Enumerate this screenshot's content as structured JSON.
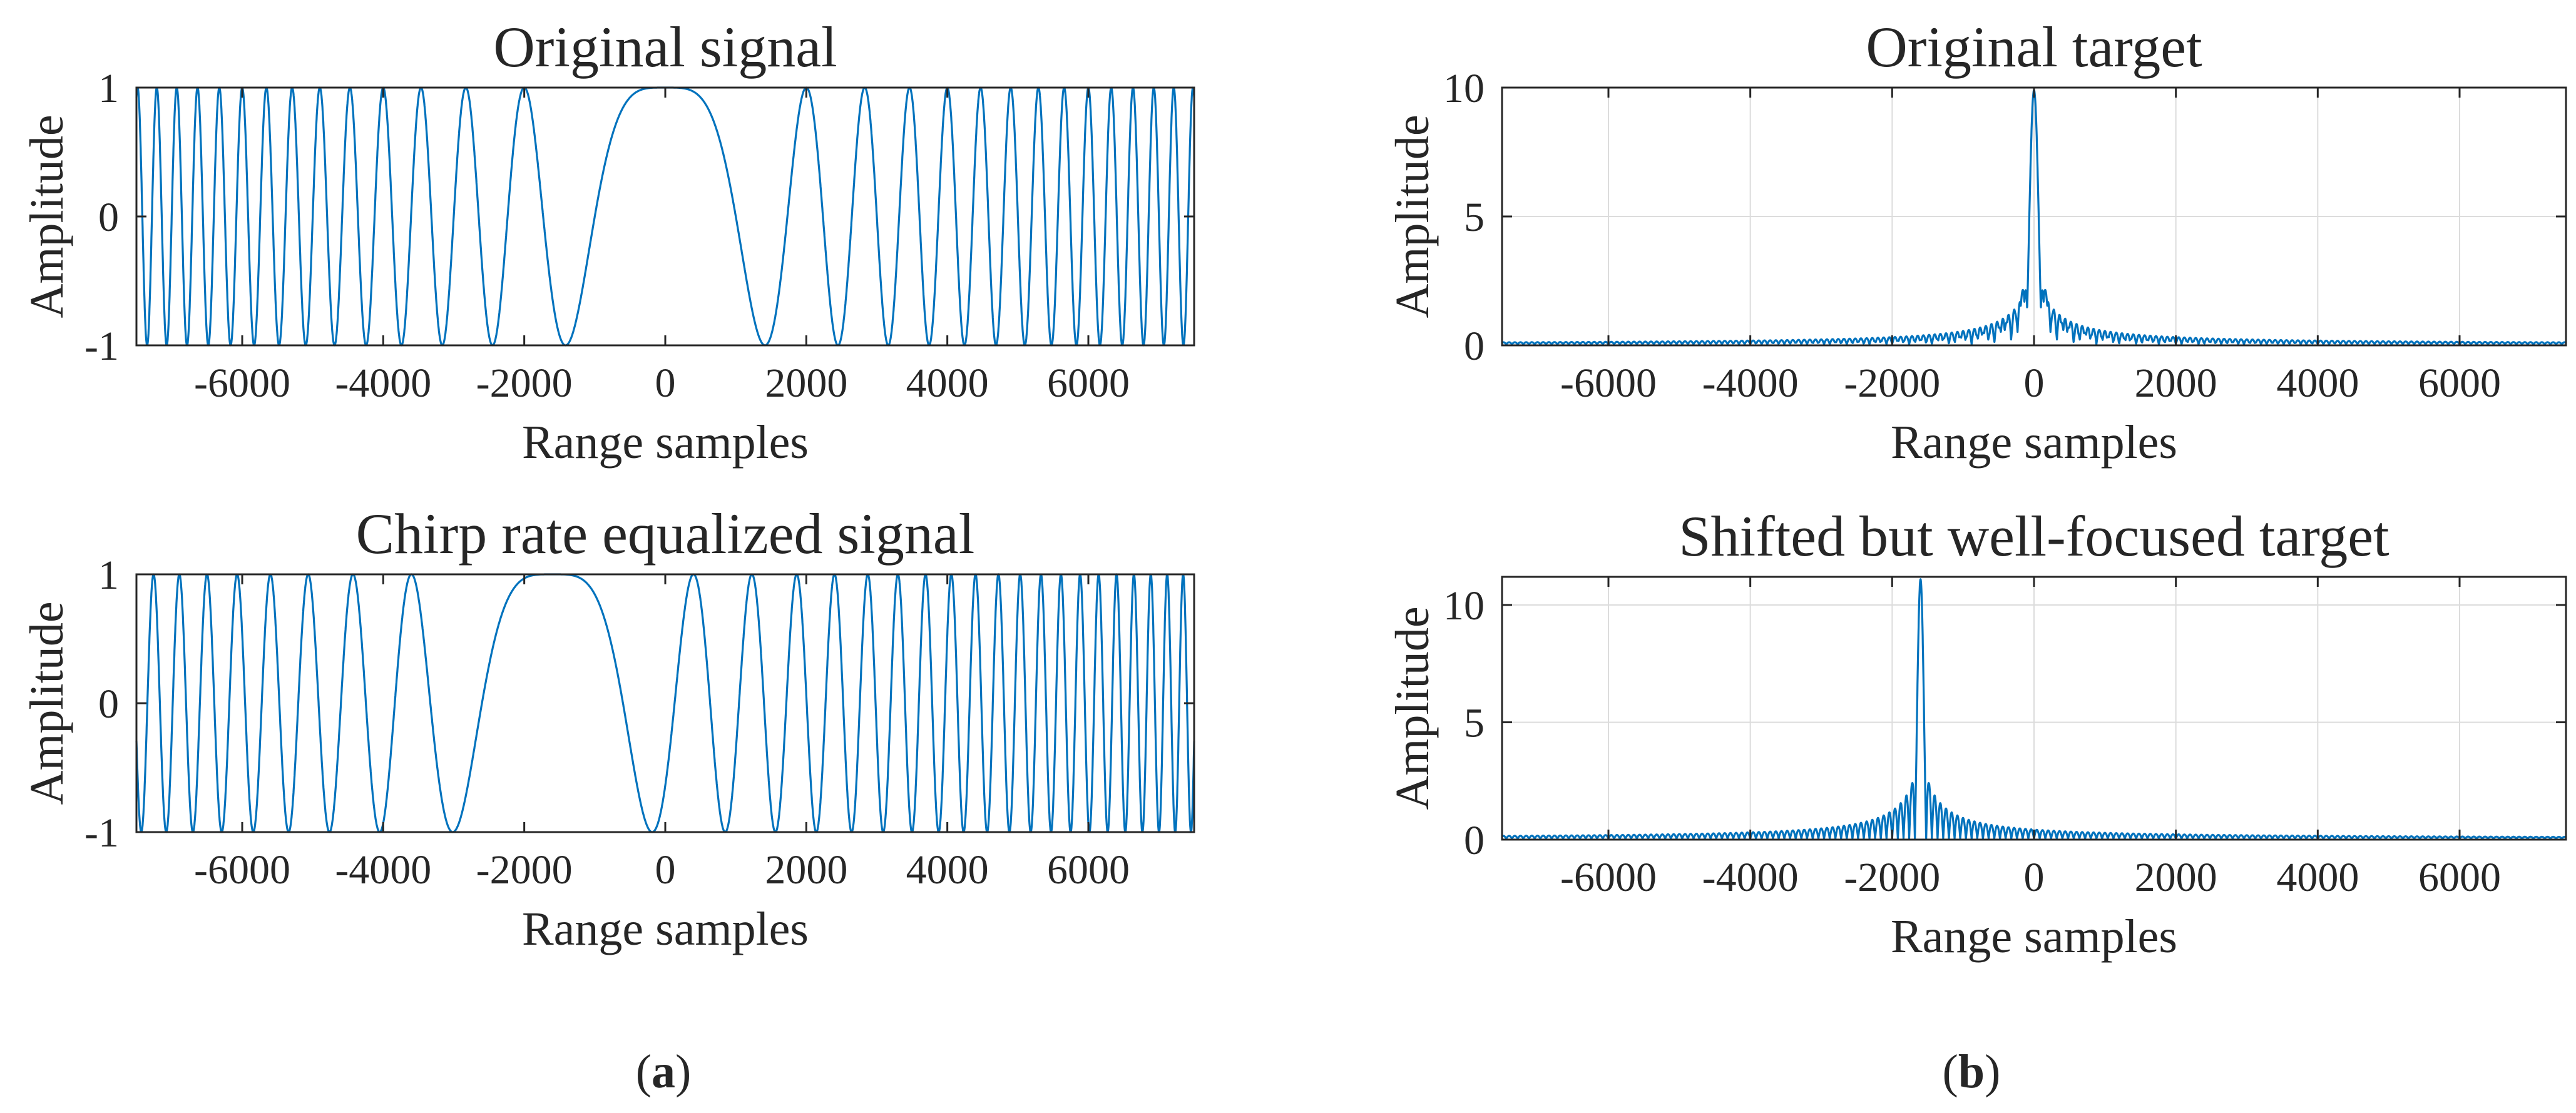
{
  "colors": {
    "line": "#0072BD",
    "grid": "#dcdcdc",
    "axis": "#262626"
  },
  "panel_labels": {
    "a": "a",
    "b": "b"
  },
  "chart_data": [
    {
      "id": "a1",
      "type": "line",
      "title": "Original signal",
      "xlabel": "Range samples",
      "ylabel": "Amplitude",
      "xlim": [
        -7500,
        7500
      ],
      "ylim": [
        -1,
        1
      ],
      "xticks": [
        -6000,
        -4000,
        -2000,
        0,
        2000,
        4000,
        6000
      ],
      "xtick_labels": [
        "-6000",
        "-4000",
        "-2000",
        "0",
        "2000",
        "4000",
        "6000"
      ],
      "yticks": [
        -1,
        0,
        1
      ],
      "ytick_labels": [
        "-1",
        "0",
        "1"
      ],
      "grid": false,
      "series": [
        {
          "name": "Original signal",
          "kind": "chirp",
          "center": 0,
          "first_zero_crossing": 1000,
          "amplitude": 1
        }
      ]
    },
    {
      "id": "a2",
      "type": "line",
      "title": "Chirp rate equalized signal",
      "xlabel": "Range samples",
      "ylabel": "Amplitude",
      "xlim": [
        -7500,
        7500
      ],
      "ylim": [
        -1,
        1
      ],
      "xticks": [
        -6000,
        -4000,
        -2000,
        0,
        2000,
        4000,
        6000
      ],
      "xtick_labels": [
        "-6000",
        "-4000",
        "-2000",
        "0",
        "2000",
        "4000",
        "6000"
      ],
      "yticks": [
        -1,
        0,
        1
      ],
      "ytick_labels": [
        "-1",
        "0",
        "1"
      ],
      "grid": false,
      "series": [
        {
          "name": "Chirp rate equalized signal",
          "kind": "chirp",
          "center": -1600,
          "first_zero_crossing": 1000,
          "amplitude": 1
        }
      ]
    },
    {
      "id": "b1",
      "type": "line",
      "title": "Original target",
      "xlabel": "Range samples",
      "ylabel": "Amplitude",
      "xlim": [
        -7500,
        7500
      ],
      "ylim": [
        0,
        10
      ],
      "xticks": [
        -6000,
        -4000,
        -2000,
        0,
        2000,
        4000,
        6000
      ],
      "xtick_labels": [
        "-6000",
        "-4000",
        "-2000",
        "0",
        "2000",
        "4000",
        "6000"
      ],
      "yticks": [
        0,
        5,
        10
      ],
      "ytick_labels": [
        "0",
        "5",
        "10"
      ],
      "grid": true,
      "series": [
        {
          "name": "Original target",
          "kind": "sinc",
          "center": 0,
          "peak": 9.9,
          "mainlobe_halfwidth": 110,
          "sidelobe_period": 80
        }
      ]
    },
    {
      "id": "b2",
      "type": "line",
      "title": "Shifted but well-focused target",
      "xlabel": "Range samples",
      "ylabel": "Amplitude",
      "xlim": [
        -7500,
        7500
      ],
      "ylim": [
        0,
        11.2
      ],
      "xticks": [
        -6000,
        -4000,
        -2000,
        0,
        2000,
        4000,
        6000
      ],
      "xtick_labels": [
        "-6000",
        "-4000",
        "-2000",
        "0",
        "2000",
        "4000",
        "6000"
      ],
      "yticks": [
        0,
        5,
        10
      ],
      "ytick_labels": [
        "0",
        "5",
        "10"
      ],
      "grid": true,
      "series": [
        {
          "name": "Shifted but well-focused target",
          "kind": "sinc",
          "center": -1600,
          "peak": 11.1,
          "mainlobe_halfwidth": 80,
          "sidelobe_period": 80
        }
      ]
    }
  ]
}
